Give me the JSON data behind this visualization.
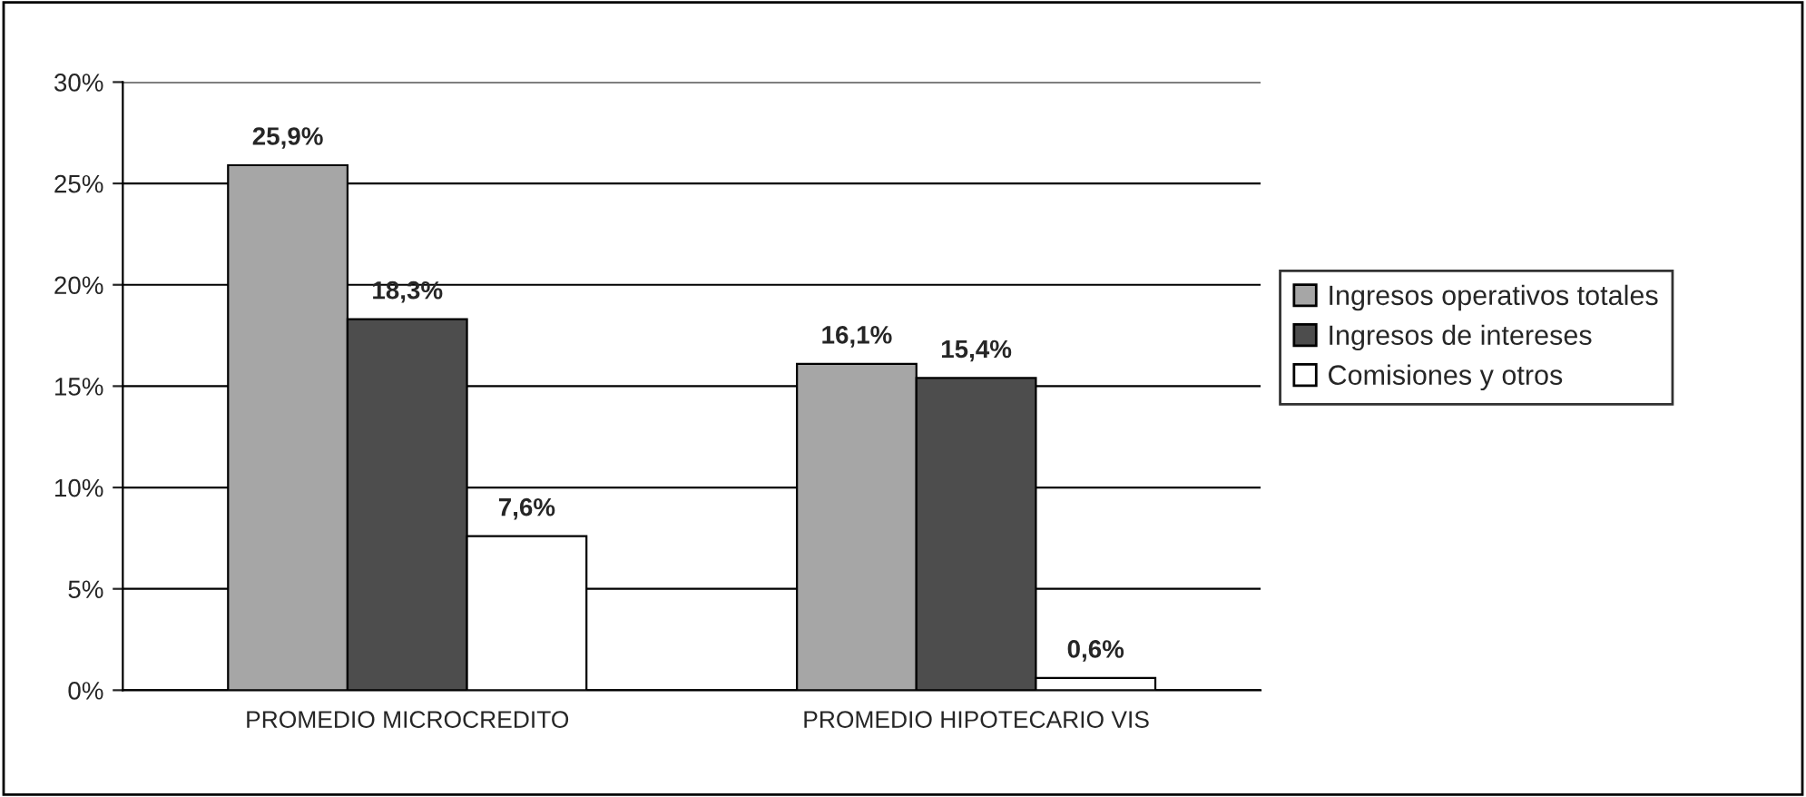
{
  "chart_data": {
    "type": "bar",
    "categories": [
      "PROMEDIO MICROCREDITO",
      "PROMEDIO HIPOTECARIO VIS"
    ],
    "series": [
      {
        "name": "Ingresos operativos totales",
        "color": "#a6a6a6",
        "values": [
          25.9,
          16.1
        ],
        "value_labels": [
          "25,9%",
          "16,1%"
        ]
      },
      {
        "name": "Ingresos de intereses",
        "color": "#4d4d4d",
        "values": [
          18.3,
          15.4
        ],
        "value_labels": [
          "18,3%",
          "15,4%"
        ]
      },
      {
        "name": "Comisiones y otros",
        "color": "#ffffff",
        "values": [
          7.6,
          0.6
        ],
        "value_labels": [
          "7,6%",
          "0,6%"
        ]
      }
    ],
    "ylim": [
      0,
      30
    ],
    "yticks": [
      {
        "value": 0,
        "label": "0%"
      },
      {
        "value": 5,
        "label": "5%"
      },
      {
        "value": 10,
        "label": "10%"
      },
      {
        "value": 15,
        "label": "15%"
      },
      {
        "value": 20,
        "label": "20%"
      },
      {
        "value": 25,
        "label": "25%"
      },
      {
        "value": 30,
        "label": "30%"
      }
    ],
    "grid": "y",
    "legend": "right"
  }
}
